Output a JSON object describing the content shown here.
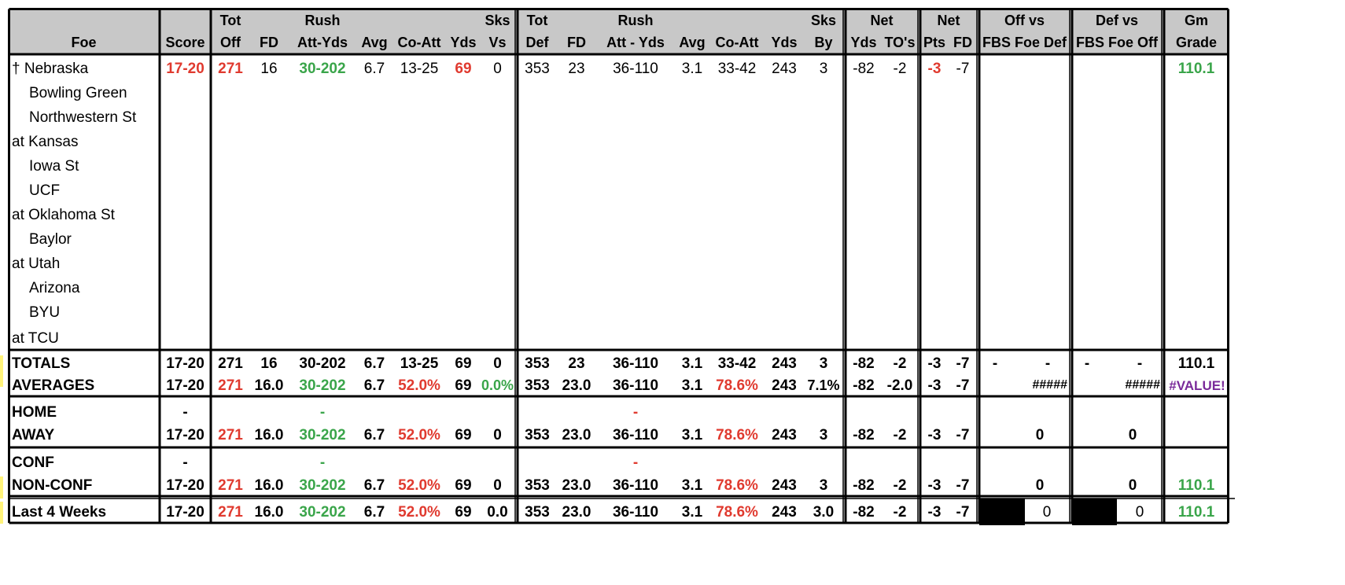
{
  "headers": {
    "foe": "Foe",
    "score": "Score",
    "tot_off": [
      "Tot",
      "Off"
    ],
    "off_fd": "FD",
    "off_rush": [
      "Rush",
      "Att-Yds"
    ],
    "off_avg": "Avg",
    "off_coatt": "Co-Att",
    "off_yds": "Yds",
    "sks_vs": [
      "Sks",
      "Vs"
    ],
    "tot_def": [
      "Tot",
      "Def"
    ],
    "def_fd": "FD",
    "def_rush": [
      "Rush",
      "Att - Yds"
    ],
    "def_avg": "Avg",
    "def_coatt": "Co-Att",
    "def_yds": "Yds",
    "sks_by": [
      "Sks",
      "By"
    ],
    "net1": [
      "Net",
      "Yds",
      "TO's"
    ],
    "net2": [
      "Net",
      "Pts",
      "FD"
    ],
    "off_vs": [
      "Off vs",
      "FBS Foe Def"
    ],
    "def_vs": [
      "Def vs",
      "FBS Foe Off"
    ],
    "gm_grade": [
      "Gm",
      "Grade"
    ]
  },
  "opponents": [
    "† Nebraska",
    "Bowling Green",
    "Northwestern St",
    "at Kansas",
    "Iowa St",
    "UCF",
    "at Oklahoma St",
    "Baylor",
    "at Utah",
    "Arizona",
    "BYU",
    "at TCU"
  ],
  "game1": {
    "score": "17-20",
    "tot_off": "271",
    "fd": "16",
    "rush": "30-202",
    "avg": "6.7",
    "coatt": "13-25",
    "yds": "69",
    "sks_vs": "0",
    "tot_def": "353",
    "dfd": "23",
    "drush": "36-110",
    "davg": "3.1",
    "dcoatt": "33-42",
    "dyds": "243",
    "sks_by": "3",
    "net_yds": "-82",
    "net_to": "-2",
    "net_pts": "-3",
    "net_fd": "-7",
    "grade": "110.1"
  },
  "totals": {
    "label": "TOTALS",
    "score": "17-20",
    "tot_off": "271",
    "fd": "16",
    "rush": "30-202",
    "avg": "6.7",
    "coatt": "13-25",
    "yds": "69",
    "sks_vs": "0",
    "tot_def": "353",
    "dfd": "23",
    "drush": "36-110",
    "davg": "3.1",
    "dcoatt": "33-42",
    "dyds": "243",
    "sks_by": "3",
    "net_yds": "-82",
    "net_to": "-2",
    "net_pts": "-3",
    "net_fd": "-7",
    "offvs_a": "-",
    "offvs_b": "-",
    "defvs_a": "-",
    "defvs_b": "-",
    "grade": "110.1"
  },
  "averages": {
    "label": "AVERAGES",
    "score": "17-20",
    "tot_off": "271",
    "fd": "16.0",
    "rush": "30-202",
    "avg": "6.7",
    "coatt": "52.0%",
    "yds": "69",
    "sks_vs": "0.0%",
    "tot_def": "353",
    "dfd": "23.0",
    "drush": "36-110",
    "davg": "3.1",
    "dcoatt": "78.6%",
    "dyds": "243",
    "sks_by": "7.1%",
    "net_yds": "-82",
    "net_to": "-2.0",
    "net_pts": "-3",
    "net_fd": "-7",
    "offvs": "#####",
    "defvs": "#####",
    "grade": "#VALUE!"
  },
  "home": {
    "label": "HOME",
    "score": "-",
    "rush": "-",
    "drush": "-"
  },
  "away": {
    "label": "AWAY",
    "score": "17-20",
    "tot_off": "271",
    "fd": "16.0",
    "rush": "30-202",
    "avg": "6.7",
    "coatt": "52.0%",
    "yds": "69",
    "sks_vs": "0",
    "tot_def": "353",
    "dfd": "23.0",
    "drush": "36-110",
    "davg": "3.1",
    "dcoatt": "78.6%",
    "dyds": "243",
    "sks_by": "3",
    "net_yds": "-82",
    "net_to": "-2",
    "net_pts": "-3",
    "net_fd": "-7",
    "offvs": "0",
    "defvs": "0"
  },
  "conf": {
    "label": "CONF",
    "score": "-",
    "rush": "-",
    "drush": "-"
  },
  "nonconf": {
    "label": "NON-CONF",
    "score": "17-20",
    "tot_off": "271",
    "fd": "16.0",
    "rush": "30-202",
    "avg": "6.7",
    "coatt": "52.0%",
    "yds": "69",
    "sks_vs": "0",
    "tot_def": "353",
    "dfd": "23.0",
    "drush": "36-110",
    "davg": "3.1",
    "dcoatt": "78.6%",
    "dyds": "243",
    "sks_by": "3",
    "net_yds": "-82",
    "net_to": "-2",
    "net_pts": "-3",
    "net_fd": "-7",
    "offvs": "0",
    "defvs": "0",
    "grade": "110.1"
  },
  "last4": {
    "label": "Last 4 Weeks",
    "score": "17-20",
    "tot_off": "271",
    "fd": "16.0",
    "rush": "30-202",
    "avg": "6.7",
    "coatt": "52.0%",
    "yds": "69",
    "sks_vs": "0.0",
    "tot_def": "353",
    "dfd": "23.0",
    "drush": "36-110",
    "davg": "3.1",
    "dcoatt": "78.6%",
    "dyds": "243",
    "sks_by": "3.0",
    "net_yds": "-82",
    "net_to": "-2",
    "net_pts": "-3",
    "net_fd": "-7",
    "offvs": "0",
    "defvs": "0",
    "grade": "110.1"
  },
  "colors": {
    "header_bg": "#c8c8c8",
    "negative_red": "#e03a2f",
    "positive_green": "#3aa54a",
    "error_purple": "#7a2a9a"
  }
}
